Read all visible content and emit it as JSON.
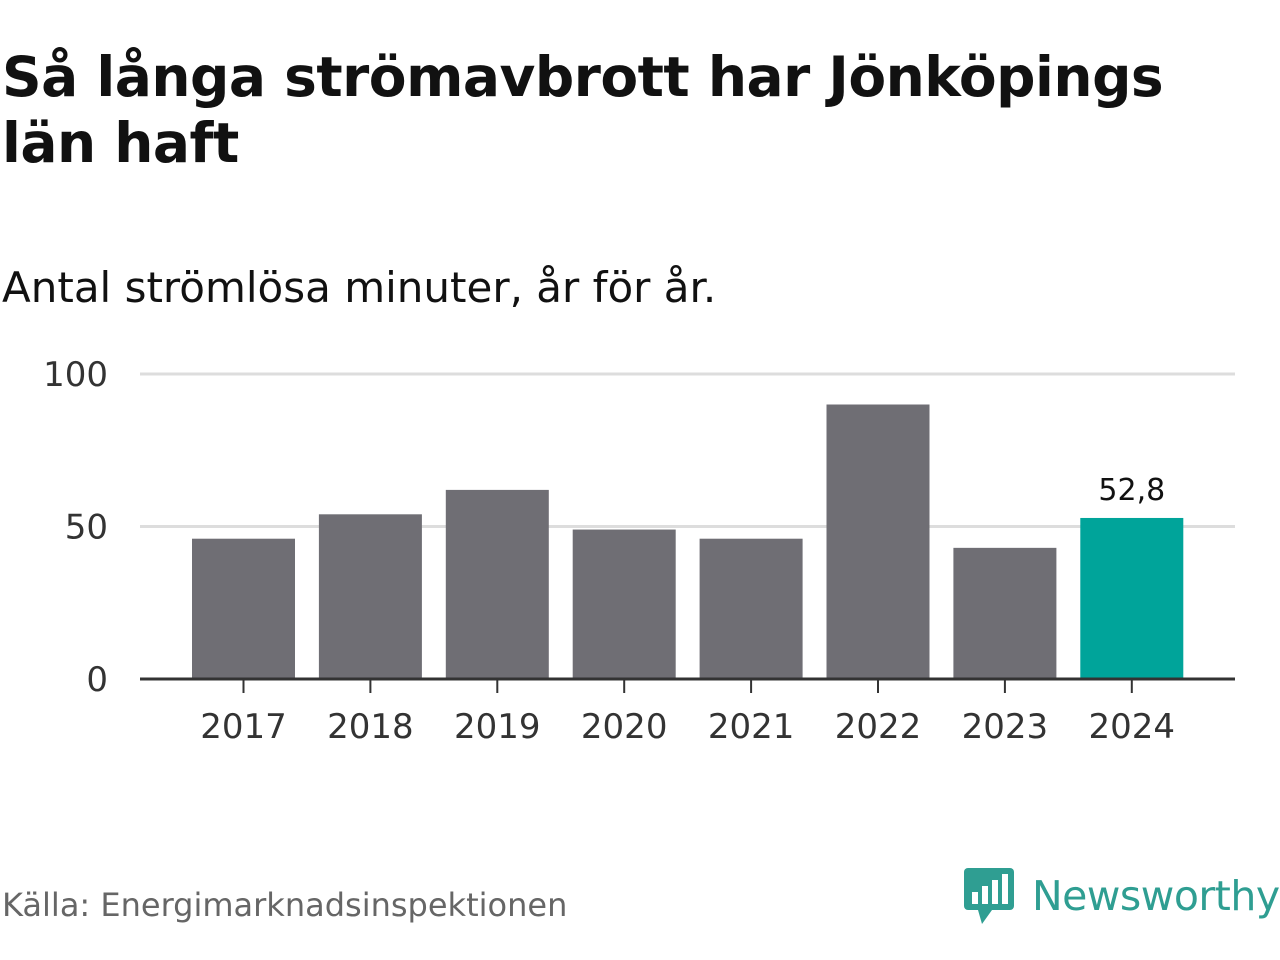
{
  "title": "Så långa strömavbrott har Jönköpings län haft",
  "subtitle": "Antal strömlösa minuter, år för år.",
  "source": "Källa: Energimarknadsinspektionen",
  "brand": {
    "name": "Newsworthy",
    "color": "#2f9e92",
    "logo_icon": "newsworthy-bar-chart-speech-bubble-icon"
  },
  "colors": {
    "bar": "#6f6e74",
    "highlight": "#00a49a",
    "grid": "#dddddd",
    "axis": "#333333"
  },
  "chart_data": {
    "type": "bar",
    "title": "Så långa strömavbrott har Jönköpings län haft",
    "subtitle": "Antal strömlösa minuter, år för år.",
    "categories": [
      "2017",
      "2018",
      "2019",
      "2020",
      "2021",
      "2022",
      "2023",
      "2024"
    ],
    "values": [
      46,
      54,
      62,
      49,
      46,
      90,
      43,
      52.8
    ],
    "highlight_index": 7,
    "data_labels": {
      "7": "52,8"
    },
    "ylim": [
      0,
      100
    ],
    "yticks": [
      0,
      50,
      100
    ],
    "ytick_labels": [
      "0",
      "50",
      "100"
    ],
    "grid": true,
    "xlabel": "",
    "ylabel": ""
  }
}
